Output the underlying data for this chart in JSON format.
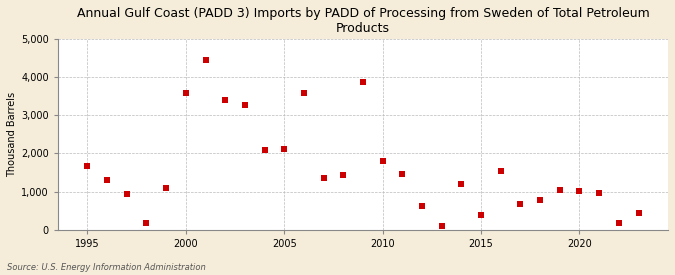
{
  "title": "Annual Gulf Coast (PADD 3) Imports by PADD of Processing from Sweden of Total Petroleum\nProducts",
  "ylabel": "Thousand Barrels",
  "source": "Source: U.S. Energy Information Administration",
  "background_color": "#f5edda",
  "plot_bg_color": "#ffffff",
  "marker_color": "#cc0000",
  "marker": "s",
  "marker_size": 4,
  "xlim": [
    1993.5,
    2024.5
  ],
  "ylim": [
    0,
    5000
  ],
  "yticks": [
    0,
    1000,
    2000,
    3000,
    4000,
    5000
  ],
  "xticks": [
    1995,
    2000,
    2005,
    2010,
    2015,
    2020
  ],
  "data": {
    "years": [
      1995,
      1996,
      1997,
      1998,
      1999,
      2000,
      2001,
      2002,
      2003,
      2004,
      2005,
      2006,
      2007,
      2008,
      2009,
      2010,
      2011,
      2012,
      2013,
      2014,
      2015,
      2016,
      2017,
      2018,
      2019,
      2020,
      2021,
      2022,
      2023
    ],
    "values": [
      1680,
      1310,
      950,
      180,
      1100,
      3580,
      4460,
      3400,
      3270,
      2100,
      2120,
      3580,
      1360,
      1430,
      3860,
      1810,
      1460,
      630,
      110,
      1210,
      400,
      1530,
      680,
      790,
      1040,
      1010,
      960,
      190,
      450
    ]
  }
}
